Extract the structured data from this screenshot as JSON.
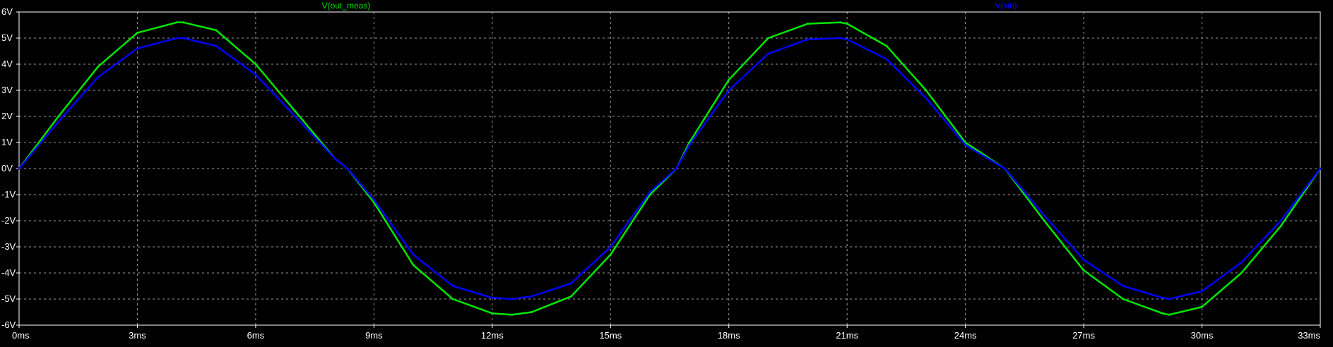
{
  "chart_data": {
    "type": "line",
    "grid": true,
    "background_color": "#000000",
    "axis_color": "#ffffff",
    "grid_color": "#9a9a9a",
    "xlim": [
      0,
      33
    ],
    "ylim": [
      -6,
      6
    ],
    "x_ticks": [
      0,
      3,
      6,
      9,
      12,
      15,
      18,
      21,
      24,
      27,
      30,
      33
    ],
    "x_tick_labels": [
      "0ms",
      "3ms",
      "6ms",
      "9ms",
      "12ms",
      "15ms",
      "18ms",
      "21ms",
      "24ms",
      "27ms",
      "30ms",
      "33ms"
    ],
    "y_ticks": [
      6,
      5,
      4,
      3,
      2,
      1,
      0,
      -1,
      -2,
      -3,
      -4,
      -5,
      -6
    ],
    "y_tick_labels": [
      "6V",
      "5V",
      "4V",
      "3V",
      "2V",
      "1V",
      "0V",
      "-1V",
      "-2V",
      "-3V",
      "-4V",
      "-5V",
      "-6V"
    ],
    "series": [
      {
        "name": "V(out_meas)",
        "color": "#00e600",
        "x": [
          0,
          1,
          2,
          3,
          4,
          4.17,
          5,
          6,
          7,
          8,
          8.33,
          9,
          10,
          11,
          12,
          12.5,
          13,
          14,
          15,
          16,
          16.67,
          17,
          18,
          19,
          20,
          20.83,
          21,
          22,
          23,
          24,
          25,
          25,
          26,
          27,
          28,
          29,
          29.17,
          30,
          31,
          32,
          33
        ],
        "values": [
          0,
          2.0,
          3.9,
          5.2,
          5.6,
          5.6,
          5.3,
          4.0,
          2.2,
          0.4,
          0,
          -1.3,
          -3.7,
          -5.0,
          -5.55,
          -5.6,
          -5.5,
          -4.9,
          -3.3,
          -1.0,
          0,
          1.0,
          3.4,
          5.0,
          5.55,
          5.6,
          5.55,
          4.7,
          3.0,
          1.0,
          0,
          0,
          -2.0,
          -3.9,
          -5.0,
          -5.55,
          -5.6,
          -5.3,
          -4.0,
          -2.2,
          0
        ]
      },
      {
        "name": "V(vin)",
        "color": "#0000ff",
        "x": [
          0,
          1,
          2,
          3,
          4,
          4.17,
          5,
          6,
          7,
          8,
          8.33,
          9,
          10,
          11,
          12,
          12.5,
          13,
          14,
          15,
          16,
          16.67,
          17,
          18,
          19,
          20,
          20.83,
          21,
          22,
          23,
          24,
          25,
          25,
          26,
          27,
          28,
          29,
          29.17,
          30,
          31,
          32,
          33
        ],
        "values": [
          0,
          1.8,
          3.5,
          4.6,
          5.0,
          5.0,
          4.7,
          3.6,
          2.0,
          0.4,
          0,
          -1.2,
          -3.3,
          -4.5,
          -4.95,
          -5.0,
          -4.9,
          -4.4,
          -3.0,
          -0.9,
          0,
          0.9,
          3.0,
          4.4,
          4.95,
          5.0,
          4.95,
          4.2,
          2.7,
          0.9,
          0,
          0,
          -1.8,
          -3.5,
          -4.5,
          -4.95,
          -5.0,
          -4.7,
          -3.6,
          -2.0,
          0
        ]
      }
    ]
  }
}
